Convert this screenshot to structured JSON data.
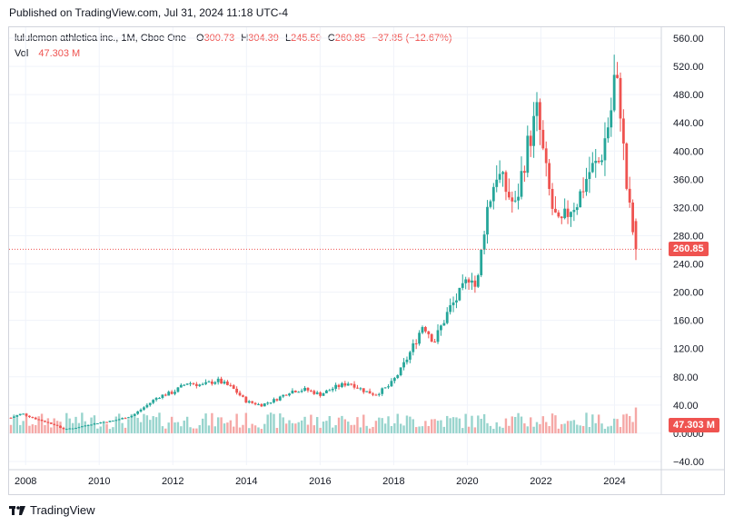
{
  "header": {
    "published": "Published on TradingView.com, Jul 31, 2024 11:18 UTC-4"
  },
  "legend": {
    "symbol": "lululemon athletica inc., 1M, Cboe One",
    "o_label": "O",
    "o_value": "300.73",
    "h_label": "H",
    "h_value": "304.39",
    "l_label": "L",
    "l_value": "245.59",
    "c_label": "C",
    "c_value": "260.85",
    "change": "−37.85 (−12.67%)",
    "vol_label": "Vol",
    "vol_value": "47.303 M"
  },
  "badges": {
    "price": "260.85",
    "volume": "47.303 M"
  },
  "footer": {
    "brand": "TradingView"
  },
  "colors": {
    "up": "#26a69a",
    "down": "#ef5350",
    "up_vol": "#98d4cd",
    "down_vol": "#f5a8a6",
    "grid": "#f0f3fa"
  },
  "chart_data": {
    "type": "candlestick",
    "title": "lululemon athletica inc., 1M, Cboe One",
    "interval": "1M",
    "price_axis": {
      "ticks": [
        "560.00",
        "520.00",
        "480.00",
        "440.00",
        "400.00",
        "360.00",
        "320.00",
        "280.00",
        "240.00",
        "200.00",
        "160.00",
        "120.00",
        "80.00",
        "40.00",
        "0.0000",
        "−40.00"
      ],
      "range": [
        -40,
        560
      ]
    },
    "x_axis": {
      "ticks": [
        "2008",
        "2010",
        "2012",
        "2014",
        "2016",
        "2018",
        "2020",
        "2022",
        "2024"
      ],
      "range": [
        2007.6,
        2024.58
      ]
    },
    "last": {
      "open": 300.73,
      "high": 304.39,
      "low": 245.59,
      "close": 260.85,
      "change": -37.85,
      "change_pct": -12.67,
      "volume_m": 47.303
    },
    "price_path": [
      [
        2007.6,
        22
      ],
      [
        2007.9,
        28
      ],
      [
        2008.3,
        20
      ],
      [
        2008.8,
        12
      ],
      [
        2009.0,
        6
      ],
      [
        2009.3,
        7
      ],
      [
        2009.7,
        12
      ],
      [
        2010.0,
        15
      ],
      [
        2010.4,
        18
      ],
      [
        2010.9,
        25
      ],
      [
        2011.3,
        40
      ],
      [
        2011.6,
        52
      ],
      [
        2012.0,
        58
      ],
      [
        2012.4,
        72
      ],
      [
        2012.8,
        68
      ],
      [
        2013.2,
        75
      ],
      [
        2013.6,
        65
      ],
      [
        2014.0,
        45
      ],
      [
        2014.4,
        40
      ],
      [
        2014.8,
        48
      ],
      [
        2015.2,
        60
      ],
      [
        2015.6,
        62
      ],
      [
        2016.0,
        55
      ],
      [
        2016.4,
        65
      ],
      [
        2016.8,
        72
      ],
      [
        2017.2,
        60
      ],
      [
        2017.5,
        55
      ],
      [
        2017.9,
        68
      ],
      [
        2018.2,
        90
      ],
      [
        2018.5,
        120
      ],
      [
        2018.8,
        155
      ],
      [
        2019.1,
        130
      ],
      [
        2019.5,
        175
      ],
      [
        2019.9,
        205
      ],
      [
        2020.1,
        230
      ],
      [
        2020.25,
        200
      ],
      [
        2020.5,
        310
      ],
      [
        2020.8,
        370
      ],
      [
        2021.0,
        350
      ],
      [
        2021.3,
        320
      ],
      [
        2021.6,
        400
      ],
      [
        2021.9,
        455
      ],
      [
        2022.1,
        380
      ],
      [
        2022.3,
        320
      ],
      [
        2022.5,
        290
      ],
      [
        2022.8,
        320
      ],
      [
        2023.0,
        330
      ],
      [
        2023.3,
        370
      ],
      [
        2023.6,
        385
      ],
      [
        2023.9,
        455
      ],
      [
        2024.0,
        505
      ],
      [
        2024.15,
        470
      ],
      [
        2024.3,
        360
      ],
      [
        2024.45,
        300
      ],
      [
        2024.58,
        260.85
      ]
    ],
    "volume_m_range": [
      0,
      47.303
    ]
  }
}
